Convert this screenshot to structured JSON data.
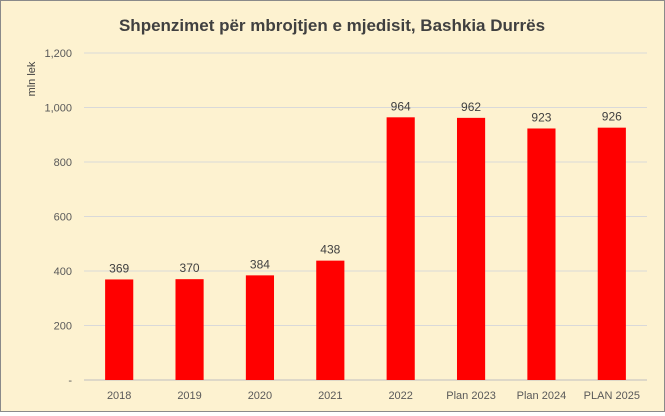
{
  "chart_data": {
    "type": "bar",
    "title": "Shpenzimet për mbrojtjen e mjedisit, Bashkia Durrës",
    "ylabel": "mln lek",
    "xlabel": "",
    "categories": [
      "2018",
      "2019",
      "2020",
      "2021",
      "2022",
      "Plan 2023",
      "Plan 2024",
      "PLAN 2025"
    ],
    "values": [
      369,
      370,
      384,
      438,
      964,
      962,
      923,
      926
    ],
    "data_labels": [
      "369",
      "370",
      "384",
      "438",
      "964",
      "962",
      "923",
      "926"
    ],
    "ylim": [
      0,
      1200
    ],
    "yticks": [
      0,
      200,
      400,
      600,
      800,
      1000,
      1200
    ],
    "ytick_labels": [
      "-",
      "200",
      "400",
      "600",
      "800",
      "1,000",
      "1,200"
    ],
    "grid": true,
    "legend": "none",
    "bar_color": "#ff0000",
    "background_color": "#fdf2d0"
  }
}
